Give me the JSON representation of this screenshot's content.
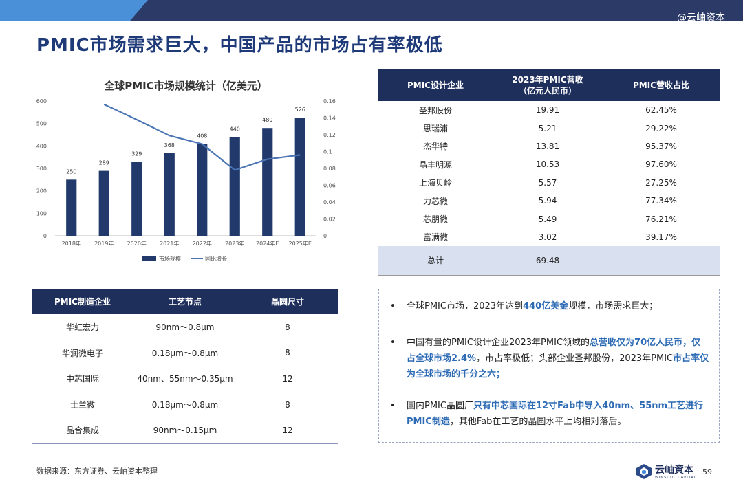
{
  "header": {
    "watermark": "@云岫资本",
    "title": "PMIC市场需求巨大，中国产品的市场占有率极低"
  },
  "chart_data": {
    "type": "bar",
    "title": "全球PMIC市场规模统计（亿美元）",
    "categories": [
      "2018年",
      "2019年",
      "2020年",
      "2021年",
      "2022年",
      "2023年",
      "2024年E",
      "2025年E"
    ],
    "series": [
      {
        "name": "市场规模",
        "type": "bar",
        "axis": "left",
        "values": [
          250,
          289,
          329,
          368,
          408,
          440,
          480,
          526
        ]
      },
      {
        "name": "同比增长",
        "type": "line",
        "axis": "right",
        "values": [
          null,
          0.156,
          0.138,
          0.119,
          0.109,
          0.078,
          0.091,
          0.096
        ]
      }
    ],
    "y_left": {
      "ticks": [
        0,
        100,
        200,
        300,
        400,
        500,
        600
      ],
      "ylim": [
        0,
        600
      ]
    },
    "y_right": {
      "ticks": [
        "0",
        "0.02",
        "0.04",
        "0.06",
        "0.08",
        "0.1",
        "0.12",
        "0.14",
        "0.16"
      ],
      "ylim": [
        0,
        0.16
      ]
    },
    "legend_position": "bottom",
    "colors": {
      "bar": "#223a6b",
      "line": "#4a74b3"
    }
  },
  "design_table": {
    "headers": [
      "PMIC设计企业",
      "2023年PMIC营收",
      "（亿元人民币）",
      "PMIC营收占比"
    ],
    "rows": [
      [
        "圣邦股份",
        "19.91",
        "62.45%"
      ],
      [
        "思瑞浦",
        "5.21",
        "29.22%"
      ],
      [
        "杰华特",
        "13.81",
        "95.37%"
      ],
      [
        "晶丰明源",
        "10.53",
        "97.60%"
      ],
      [
        "上海贝岭",
        "5.57",
        "27.25%"
      ],
      [
        "力芯微",
        "5.94",
        "77.34%"
      ],
      [
        "芯朋微",
        "5.49",
        "76.21%"
      ],
      [
        "富满微",
        "3.02",
        "39.17%"
      ]
    ],
    "total": [
      "总计",
      "69.48",
      ""
    ]
  },
  "mfg_table": {
    "headers": [
      "PMIC制造企业",
      "工艺节点",
      "晶圆尺寸"
    ],
    "rows": [
      [
        "华虹宏力",
        "90nm～0.8μm",
        "8"
      ],
      [
        "华润微电子",
        "0.18μm～0.8μm",
        "8"
      ],
      [
        "中芯国际",
        "40nm、55nm～0.35μm",
        "12"
      ],
      [
        "士兰微",
        "0.18μm～0.8μm",
        "8"
      ],
      [
        "晶合集成",
        "90nm～0.15μm",
        "12"
      ]
    ]
  },
  "notes": {
    "dot": "•",
    "b1": {
      "p1": "全球PMIC市场，2023年达到",
      "h1": "440亿美金",
      "p2": "规模，市场需求巨大；"
    },
    "b2": {
      "p1": "中国有量的PMIC设计企业2023年PMIC领域的",
      "h1": "总营收仅为70亿人民币，仅占全球市场2.4%",
      "p2": "，市占率极低；头部企业圣邦股份，2023年PMIC",
      "h2": "市占率仅为全球市场的千分之六；"
    },
    "b3": {
      "p1": "国内PMIC晶圆厂",
      "h1": "只有中芯国际在12寸Fab中导入40nm、55nm工艺进行PMIC制造",
      "p2": "，其他Fab在工艺的晶圆水平上均相对落后。"
    }
  },
  "footer": {
    "source": "数据来源：东方证券、云岫资本整理",
    "logo_text": "云岫資本",
    "logo_sub": "WINSOUL CAPITAL",
    "page": "59"
  }
}
